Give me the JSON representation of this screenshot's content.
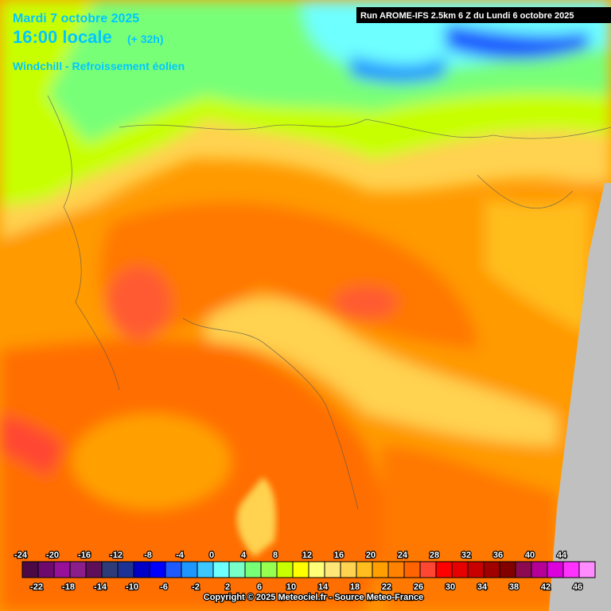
{
  "header": {
    "date": "Mardi 7 octobre 2025",
    "time": "16:00 locale",
    "lead": "(+ 32h)",
    "parameter": "Windchill - Refroissement éolien",
    "run": "Run AROME-IFS 2.5km 6 Z du Lundi 6 octobre 2025"
  },
  "scale": {
    "values": [
      -24,
      -22,
      -20,
      -18,
      -16,
      -14,
      -12,
      -10,
      -8,
      -6,
      -4,
      -2,
      0,
      2,
      4,
      6,
      8,
      10,
      12,
      14,
      16,
      18,
      20,
      22,
      24,
      26,
      28,
      30,
      32,
      34,
      36,
      38,
      40,
      42,
      44,
      46
    ],
    "colors": [
      "#4b0a46",
      "#6e0a6e",
      "#96109a",
      "#8c1e8c",
      "#5f0f5a",
      "#2d3c78",
      "#1e3296",
      "#0000c8",
      "#0000ff",
      "#1e5aff",
      "#1e96ff",
      "#3cc8ff",
      "#6effff",
      "#78ffc8",
      "#78ff78",
      "#96ff50",
      "#c8ff00",
      "#ffff00",
      "#ffff78",
      "#ffe678",
      "#ffd250",
      "#ffbe1e",
      "#ffa000",
      "#ff8200",
      "#ff6400",
      "#ff4632",
      "#ff0000",
      "#e60000",
      "#c80000",
      "#a00000",
      "#820000",
      "#8c0a50",
      "#b40096",
      "#dc00dc",
      "#ff32ff",
      "#ff8cff"
    ]
  },
  "footer": {
    "copyright": "Copyright © 2025 Meteociel.fr - Source Meteo-France"
  }
}
